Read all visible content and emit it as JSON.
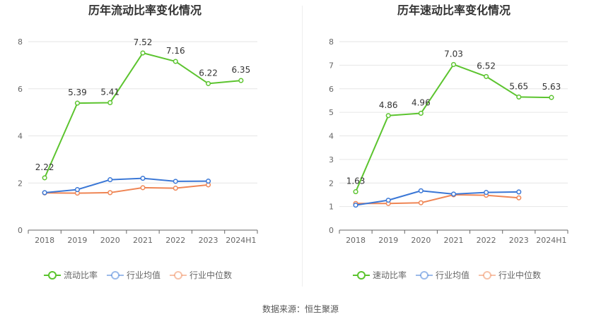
{
  "source": {
    "label": "数据来源：",
    "value": "恒生聚源"
  },
  "chart_data": [
    {
      "type": "line",
      "title": "历年流动比率变化情况",
      "categories": [
        "2018",
        "2019",
        "2020",
        "2021",
        "2022",
        "2023",
        "2024H1"
      ],
      "ylim": [
        0,
        8
      ],
      "yticks": [
        "0",
        "2",
        "4",
        "6",
        "8"
      ],
      "grid": true,
      "legend_position": "bottom",
      "series": [
        {
          "name": "流动比率",
          "color": "#5cc42f",
          "show_labels": true,
          "labels": [
            "2.22",
            "5.39",
            "5.41",
            "7.52",
            "7.16",
            "6.22",
            "6.35"
          ],
          "values": [
            2.22,
            5.39,
            5.41,
            7.52,
            7.16,
            6.22,
            6.35
          ]
        },
        {
          "name": "行业均值",
          "color": "#3a77d6",
          "show_labels": false,
          "values": [
            1.59,
            1.72,
            2.14,
            2.2,
            2.07,
            2.08,
            null
          ]
        },
        {
          "name": "行业中位数",
          "color": "#ef8554",
          "show_labels": false,
          "values": [
            1.58,
            1.57,
            1.59,
            1.8,
            1.78,
            1.92,
            null
          ]
        }
      ]
    },
    {
      "type": "line",
      "title": "历年速动比率变化情况",
      "categories": [
        "2018",
        "2019",
        "2020",
        "2021",
        "2022",
        "2023",
        "2024H1"
      ],
      "ylim": [
        0,
        8
      ],
      "yticks": [
        "0",
        "1",
        "2",
        "3",
        "4",
        "5",
        "6",
        "7",
        "8"
      ],
      "grid": true,
      "legend_position": "bottom",
      "series": [
        {
          "name": "速动比率",
          "color": "#5cc42f",
          "show_labels": true,
          "labels": [
            "1.63",
            "4.86",
            "4.96",
            "7.03",
            "6.52",
            "5.65",
            "5.63"
          ],
          "values": [
            1.63,
            4.86,
            4.96,
            7.03,
            6.52,
            5.65,
            5.63
          ]
        },
        {
          "name": "行业均值",
          "color": "#3a77d6",
          "show_labels": false,
          "values": [
            1.06,
            1.27,
            1.67,
            1.53,
            1.6,
            1.62,
            null
          ]
        },
        {
          "name": "行业中位数",
          "color": "#ef8554",
          "show_labels": false,
          "values": [
            1.13,
            1.13,
            1.16,
            1.5,
            1.48,
            1.37,
            null
          ]
        }
      ]
    }
  ]
}
